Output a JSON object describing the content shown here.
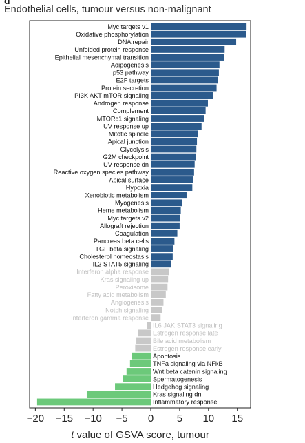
{
  "chart_data": {
    "type": "bar",
    "orientation": "horizontal",
    "panel_letter": "d",
    "title": "Endothelial cells, tumour versus non-malignant",
    "xlabel_italic": "t",
    "xlabel_rest": " value of GSVA score, tumour",
    "xlim": [
      -21,
      17.3
    ],
    "xticks": [
      -20,
      -15,
      -10,
      -5,
      0,
      5,
      10,
      15
    ],
    "xtick_labels": [
      "−20",
      "−15",
      "−10",
      "−5",
      "0",
      "5",
      "10",
      "15"
    ],
    "colors": {
      "up": "#2b5a8c",
      "neutral": "#c8c8c8",
      "down": "#6cc97a",
      "label_dark": "#111111",
      "label_light": "#c0c0c0"
    },
    "bars": [
      {
        "label": "Myc targets v1",
        "value": 16.6,
        "group": "up"
      },
      {
        "label": "Oxidative phosphorylation",
        "value": 16.5,
        "group": "up"
      },
      {
        "label": "DNA repair",
        "value": 14.8,
        "group": "up"
      },
      {
        "label": "Unfolded protein response",
        "value": 12.8,
        "group": "up"
      },
      {
        "label": "Epithelial mesenchymal transition",
        "value": 12.7,
        "group": "up"
      },
      {
        "label": "Adipogenesis",
        "value": 11.9,
        "group": "up"
      },
      {
        "label": "p53 pathway",
        "value": 11.8,
        "group": "up"
      },
      {
        "label": "E2F targets",
        "value": 11.6,
        "group": "up"
      },
      {
        "label": "Protein secretion",
        "value": 11.4,
        "group": "up"
      },
      {
        "label": "PI3K AKT mTOR signaling",
        "value": 10.8,
        "group": "up"
      },
      {
        "label": "Androgen response",
        "value": 9.9,
        "group": "up"
      },
      {
        "label": "Complement",
        "value": 9.5,
        "group": "up"
      },
      {
        "label": "MTORc1 signaling",
        "value": 9.3,
        "group": "up"
      },
      {
        "label": "UV response up",
        "value": 8.8,
        "group": "up"
      },
      {
        "label": "Mitotic spindle",
        "value": 8.2,
        "group": "up"
      },
      {
        "label": "Apical junction",
        "value": 8.0,
        "group": "up"
      },
      {
        "label": "Glycolysis",
        "value": 7.9,
        "group": "up"
      },
      {
        "label": "G2M checkpoint",
        "value": 7.8,
        "group": "up"
      },
      {
        "label": "UV response dn",
        "value": 7.6,
        "group": "up"
      },
      {
        "label": "Reactive oxygen species pathway",
        "value": 7.5,
        "group": "up"
      },
      {
        "label": "Apical surface",
        "value": 7.3,
        "group": "up"
      },
      {
        "label": "Hypoxia",
        "value": 7.2,
        "group": "up"
      },
      {
        "label": "Xenobiotic metabolism",
        "value": 6.2,
        "group": "up"
      },
      {
        "label": "Myogenesis",
        "value": 5.4,
        "group": "up"
      },
      {
        "label": "Heme metabolism",
        "value": 5.2,
        "group": "up"
      },
      {
        "label": "Myc targets v2",
        "value": 5.1,
        "group": "up"
      },
      {
        "label": "Allograft rejection",
        "value": 5.0,
        "group": "up"
      },
      {
        "label": "Coagulation",
        "value": 4.6,
        "group": "up"
      },
      {
        "label": "Pancreas beta cells",
        "value": 4.1,
        "group": "up"
      },
      {
        "label": "TGF beta signaling",
        "value": 3.9,
        "group": "up"
      },
      {
        "label": "Cholesterol homeostasis",
        "value": 3.8,
        "group": "up"
      },
      {
        "label": "IL2 STAT5 signaling",
        "value": 3.5,
        "group": "up"
      },
      {
        "label": "Interferon alpha response",
        "value": 3.2,
        "group": "neutral"
      },
      {
        "label": "Kras signaling up",
        "value": 3.0,
        "group": "neutral"
      },
      {
        "label": "Peroxisome",
        "value": 2.9,
        "group": "neutral"
      },
      {
        "label": "Fatty acid metabolism",
        "value": 2.6,
        "group": "neutral"
      },
      {
        "label": "Angiogenesis",
        "value": 2.2,
        "group": "neutral"
      },
      {
        "label": "Notch signaling",
        "value": 2.0,
        "group": "neutral"
      },
      {
        "label": "Interferon gamma response",
        "value": 1.7,
        "group": "neutral"
      },
      {
        "label": "IL6 JAK STAT3 signaling",
        "value": -0.6,
        "group": "neutral"
      },
      {
        "label": "Estrogen response late",
        "value": -2.2,
        "group": "neutral"
      },
      {
        "label": "Bile acid metabolism",
        "value": -2.5,
        "group": "neutral"
      },
      {
        "label": "Estrogen response early",
        "value": -2.7,
        "group": "neutral"
      },
      {
        "label": "Apoptosis",
        "value": -3.3,
        "group": "down"
      },
      {
        "label": "TNFa signaling via NFkB",
        "value": -3.6,
        "group": "down"
      },
      {
        "label": "Wnt beta catenin signaling",
        "value": -4.2,
        "group": "down"
      },
      {
        "label": "Spermatogenesis",
        "value": -4.8,
        "group": "down"
      },
      {
        "label": "Hedgehog signaling",
        "value": -6.2,
        "group": "down"
      },
      {
        "label": "Kras signaling dn",
        "value": -11.1,
        "group": "down"
      },
      {
        "label": "Inflammatory response",
        "value": -19.7,
        "group": "down"
      }
    ]
  }
}
